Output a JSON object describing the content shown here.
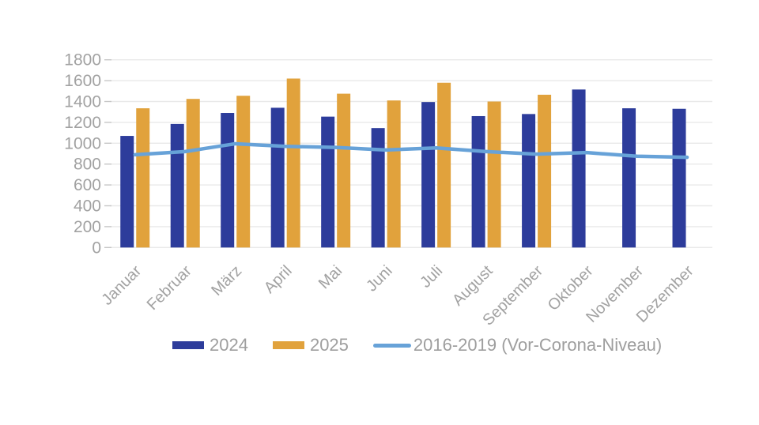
{
  "chart_data": {
    "type": "bar",
    "title": "",
    "categories": [
      "Januar",
      "Februar",
      "März",
      "April",
      "Mai",
      "Juni",
      "Juli",
      "August",
      "September",
      "Oktober",
      "November",
      "Dezember"
    ],
    "series": [
      {
        "name": "2024",
        "type": "bar",
        "color": "#2d3c9b",
        "values": [
          1070,
          1185,
          1290,
          1340,
          1255,
          1145,
          1395,
          1260,
          1280,
          1515,
          1335,
          1330
        ]
      },
      {
        "name": "2025",
        "type": "bar",
        "color": "#e1a23c",
        "values": [
          1335,
          1425,
          1455,
          1620,
          1475,
          1410,
          1580,
          1400,
          1465,
          null,
          null,
          null
        ]
      },
      {
        "name": "2016-2019 (Vor-Corona-Niveau)",
        "type": "line",
        "color": "#67a2d8",
        "values": [
          890,
          920,
          995,
          970,
          960,
          935,
          955,
          920,
          895,
          910,
          875,
          865
        ]
      }
    ],
    "xlabel": "",
    "ylabel": "",
    "ylim": [
      0,
      1800
    ],
    "yticks": [
      0,
      200,
      400,
      600,
      800,
      1000,
      1200,
      1400,
      1600,
      1800
    ],
    "grid": true,
    "legend_position": "bottom"
  },
  "colors": {
    "grid_line": "#e9e9e9",
    "tick_mark": "#c6c6c6",
    "axis_text": "#a2a2a2",
    "background": "#ffffff"
  }
}
